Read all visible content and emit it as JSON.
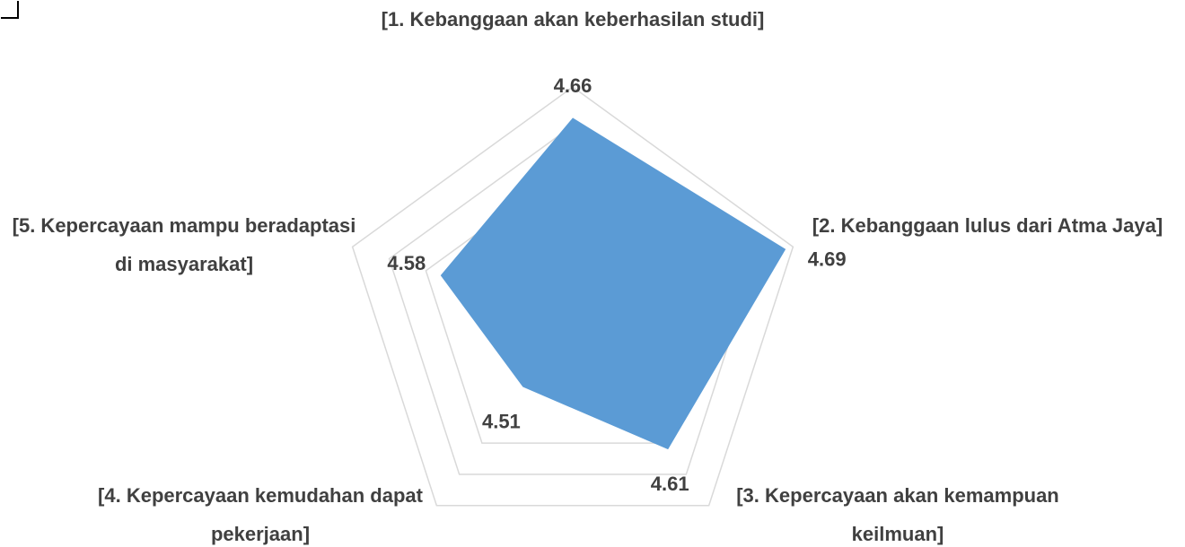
{
  "chart_data": {
    "type": "radar",
    "categories": [
      "[1. Kebanggaan akan keberhasilan studi]",
      "[2. Kebanggaan lulus dari Atma Jaya]",
      "[3. Kepercayaan akan kemampuan keilmuan]",
      "[4. Kepercayaan kemudahan dapat pekerjaan]",
      "[5. Kepercayaan mampu beradaptasi di masyarakat]"
    ],
    "values": [
      4.66,
      4.69,
      4.61,
      4.51,
      4.58
    ],
    "color": "#5b9bd5",
    "ylim": [
      4.4,
      4.7
    ],
    "yticks": [
      4.6,
      4.65,
      4.7
    ],
    "grid": true
  }
}
